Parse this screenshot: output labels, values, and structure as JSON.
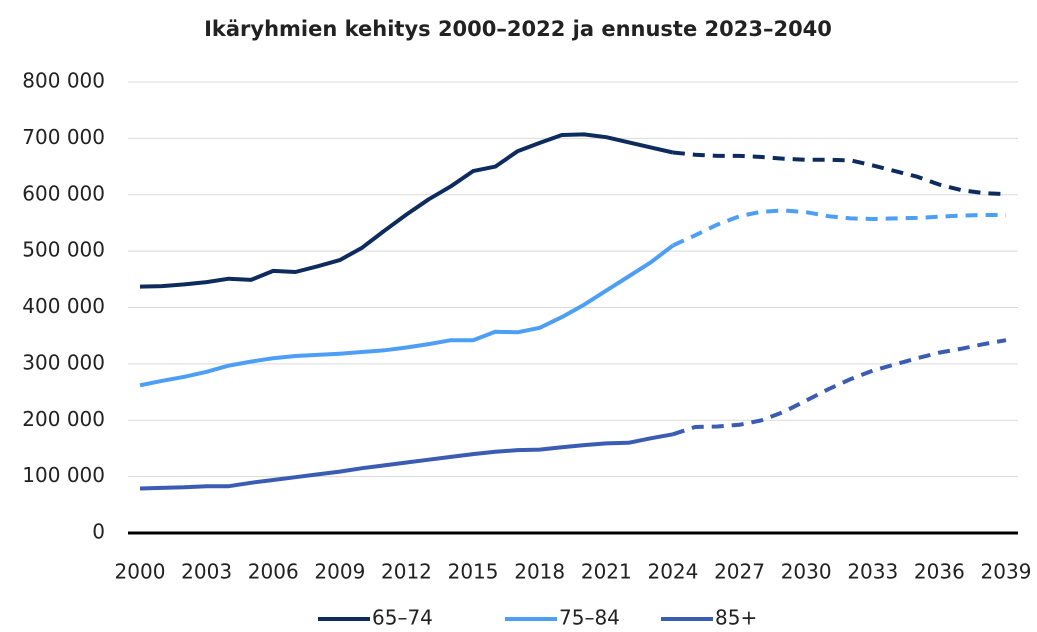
{
  "chart_data": {
    "type": "line",
    "title": "Ikäryhmien kehitys 2000–2022 ja ennuste 2023–2040",
    "x": [
      2000,
      2001,
      2002,
      2003,
      2004,
      2005,
      2006,
      2007,
      2008,
      2009,
      2010,
      2011,
      2012,
      2013,
      2014,
      2015,
      2016,
      2017,
      2018,
      2019,
      2020,
      2021,
      2022,
      2023,
      2024,
      2025,
      2026,
      2027,
      2028,
      2029,
      2030,
      2031,
      2032,
      2033,
      2034,
      2035,
      2036,
      2037,
      2038,
      2039
    ],
    "xlim": [
      2000,
      2039
    ],
    "xticks": [
      2000,
      2003,
      2006,
      2009,
      2012,
      2015,
      2018,
      2021,
      2024,
      2027,
      2030,
      2033,
      2036,
      2039
    ],
    "ylim": [
      0,
      800000
    ],
    "yticks": [
      0,
      {
        "value": 100000,
        "label": "100 000"
      },
      {
        "value": 200000,
        "label": "200 000"
      },
      {
        "value": 300000,
        "label": "300 000"
      },
      {
        "value": 400000,
        "label": "400 000"
      },
      {
        "value": 500000,
        "label": "500 000"
      },
      {
        "value": 600000,
        "label": "600 000"
      },
      {
        "value": 700000,
        "label": "700 000"
      },
      {
        "value": 800000,
        "label": "800 000"
      }
    ],
    "grid": true,
    "legend": "bottom",
    "forecast_from": 2024,
    "series": [
      {
        "name": "65–74",
        "color": "#0e2b5e",
        "values": [
          437000,
          438000,
          441000,
          445000,
          451000,
          449000,
          465000,
          463000,
          473000,
          484000,
          506000,
          536000,
          565000,
          592000,
          615000,
          642000,
          650000,
          677000,
          692000,
          706000,
          707000,
          702000,
          693000,
          684000,
          675000,
          671000,
          669000,
          669000,
          667000,
          664000,
          662000,
          662000,
          661000,
          652000,
          642000,
          632000,
          618000,
          608000,
          603000,
          601000
        ]
      },
      {
        "name": "75–84",
        "color": "#4d9ef5",
        "values": [
          262000,
          270000,
          277000,
          286000,
          297000,
          304000,
          310000,
          314000,
          316000,
          318000,
          321000,
          324000,
          329000,
          335000,
          342000,
          342000,
          357000,
          356000,
          364000,
          383000,
          405000,
          430000,
          455000,
          480000,
          510000,
          528000,
          547000,
          562000,
          570000,
          572000,
          569000,
          562000,
          558000,
          557000,
          558000,
          559000,
          561000,
          563000,
          564000,
          564000
        ]
      },
      {
        "name": "85+",
        "color": "#3b5cb3",
        "values": [
          79000,
          80000,
          81000,
          83000,
          83000,
          89000,
          94000,
          99000,
          104000,
          109000,
          115000,
          120000,
          125000,
          130000,
          135000,
          140000,
          144000,
          147000,
          148000,
          152000,
          156000,
          159000,
          160000,
          168000,
          175000,
          188000,
          189000,
          192000,
          200000,
          215000,
          235000,
          255000,
          273000,
          288000,
          299000,
          310000,
          320000,
          327000,
          335000,
          342000
        ]
      }
    ]
  }
}
